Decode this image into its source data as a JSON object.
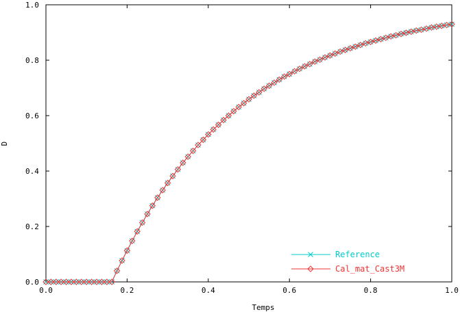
{
  "chart_data": {
    "type": "line",
    "title": "",
    "xlabel": "Temps",
    "ylabel": "D",
    "xlim": [
      0.0,
      1.0
    ],
    "ylim": [
      0.0,
      1.0
    ],
    "x_ticks": [
      "0.0",
      "0.2",
      "0.4",
      "0.6",
      "0.8",
      "1.0"
    ],
    "y_ticks": [
      "0.0",
      "0.2",
      "0.4",
      "0.6",
      "0.8",
      "1.0"
    ],
    "grid": false,
    "legend_position": "bottom-right",
    "series": [
      {
        "name": "Reference",
        "color": "#00cccc",
        "marker": "x",
        "x": [
          0.0,
          0.0125,
          0.025,
          0.0375,
          0.05,
          0.0625,
          0.075,
          0.0875,
          0.1,
          0.1125,
          0.125,
          0.1375,
          0.15,
          0.1625,
          0.175,
          0.1875,
          0.2,
          0.2125,
          0.225,
          0.2375,
          0.25,
          0.2625,
          0.275,
          0.2875,
          0.3,
          0.3125,
          0.325,
          0.3375,
          0.35,
          0.3625,
          0.375,
          0.3875,
          0.4,
          0.4125,
          0.425,
          0.4375,
          0.45,
          0.4625,
          0.475,
          0.4875,
          0.5,
          0.5125,
          0.525,
          0.5375,
          0.55,
          0.5625,
          0.575,
          0.5875,
          0.6,
          0.6125,
          0.625,
          0.6375,
          0.65,
          0.6625,
          0.675,
          0.6875,
          0.7,
          0.7125,
          0.725,
          0.7375,
          0.75,
          0.7625,
          0.775,
          0.7875,
          0.8,
          0.8125,
          0.825,
          0.8375,
          0.85,
          0.8625,
          0.875,
          0.8875,
          0.9,
          0.9125,
          0.925,
          0.9375,
          0.95,
          0.9625,
          0.975,
          0.9875,
          1.0
        ],
        "values": [
          0.0,
          0.0,
          0.0,
          0.0,
          0.0,
          0.0,
          0.0,
          0.0,
          0.0,
          0.0,
          0.0,
          0.0,
          0.0,
          0.0,
          0.04,
          0.077,
          0.113,
          0.148,
          0.182,
          0.214,
          0.245,
          0.275,
          0.304,
          0.331,
          0.357,
          0.382,
          0.406,
          0.43,
          0.452,
          0.473,
          0.494,
          0.513,
          0.532,
          0.55,
          0.567,
          0.584,
          0.6,
          0.616,
          0.631,
          0.645,
          0.659,
          0.672,
          0.684,
          0.697,
          0.708,
          0.719,
          0.73,
          0.741,
          0.75,
          0.76,
          0.769,
          0.778,
          0.786,
          0.795,
          0.802,
          0.81,
          0.817,
          0.824,
          0.831,
          0.837,
          0.843,
          0.849,
          0.855,
          0.861,
          0.866,
          0.871,
          0.876,
          0.881,
          0.886,
          0.89,
          0.895,
          0.899,
          0.903,
          0.907,
          0.91,
          0.914,
          0.918,
          0.921,
          0.924,
          0.927,
          0.93
        ]
      },
      {
        "name": "Cal_mat_Cast3M",
        "color": "#ee3333",
        "marker": "diamond",
        "x": [
          0.0,
          0.0125,
          0.025,
          0.0375,
          0.05,
          0.0625,
          0.075,
          0.0875,
          0.1,
          0.1125,
          0.125,
          0.1375,
          0.15,
          0.1625,
          0.175,
          0.1875,
          0.2,
          0.2125,
          0.225,
          0.2375,
          0.25,
          0.2625,
          0.275,
          0.2875,
          0.3,
          0.3125,
          0.325,
          0.3375,
          0.35,
          0.3625,
          0.375,
          0.3875,
          0.4,
          0.4125,
          0.425,
          0.4375,
          0.45,
          0.4625,
          0.475,
          0.4875,
          0.5,
          0.5125,
          0.525,
          0.5375,
          0.55,
          0.5625,
          0.575,
          0.5875,
          0.6,
          0.6125,
          0.625,
          0.6375,
          0.65,
          0.6625,
          0.675,
          0.6875,
          0.7,
          0.7125,
          0.725,
          0.7375,
          0.75,
          0.7625,
          0.775,
          0.7875,
          0.8,
          0.8125,
          0.825,
          0.8375,
          0.85,
          0.8625,
          0.875,
          0.8875,
          0.9,
          0.9125,
          0.925,
          0.9375,
          0.95,
          0.9625,
          0.975,
          0.9875,
          1.0
        ],
        "values": [
          0.0,
          0.0,
          0.0,
          0.0,
          0.0,
          0.0,
          0.0,
          0.0,
          0.0,
          0.0,
          0.0,
          0.0,
          0.0,
          0.0,
          0.04,
          0.077,
          0.113,
          0.148,
          0.182,
          0.214,
          0.245,
          0.275,
          0.304,
          0.331,
          0.357,
          0.382,
          0.406,
          0.43,
          0.452,
          0.473,
          0.494,
          0.513,
          0.532,
          0.55,
          0.567,
          0.584,
          0.6,
          0.616,
          0.631,
          0.645,
          0.659,
          0.672,
          0.684,
          0.697,
          0.708,
          0.719,
          0.73,
          0.741,
          0.75,
          0.76,
          0.769,
          0.778,
          0.786,
          0.795,
          0.802,
          0.81,
          0.817,
          0.824,
          0.831,
          0.837,
          0.843,
          0.849,
          0.855,
          0.861,
          0.866,
          0.871,
          0.876,
          0.881,
          0.886,
          0.89,
          0.895,
          0.899,
          0.903,
          0.907,
          0.91,
          0.914,
          0.918,
          0.921,
          0.924,
          0.927,
          0.93
        ]
      }
    ]
  }
}
